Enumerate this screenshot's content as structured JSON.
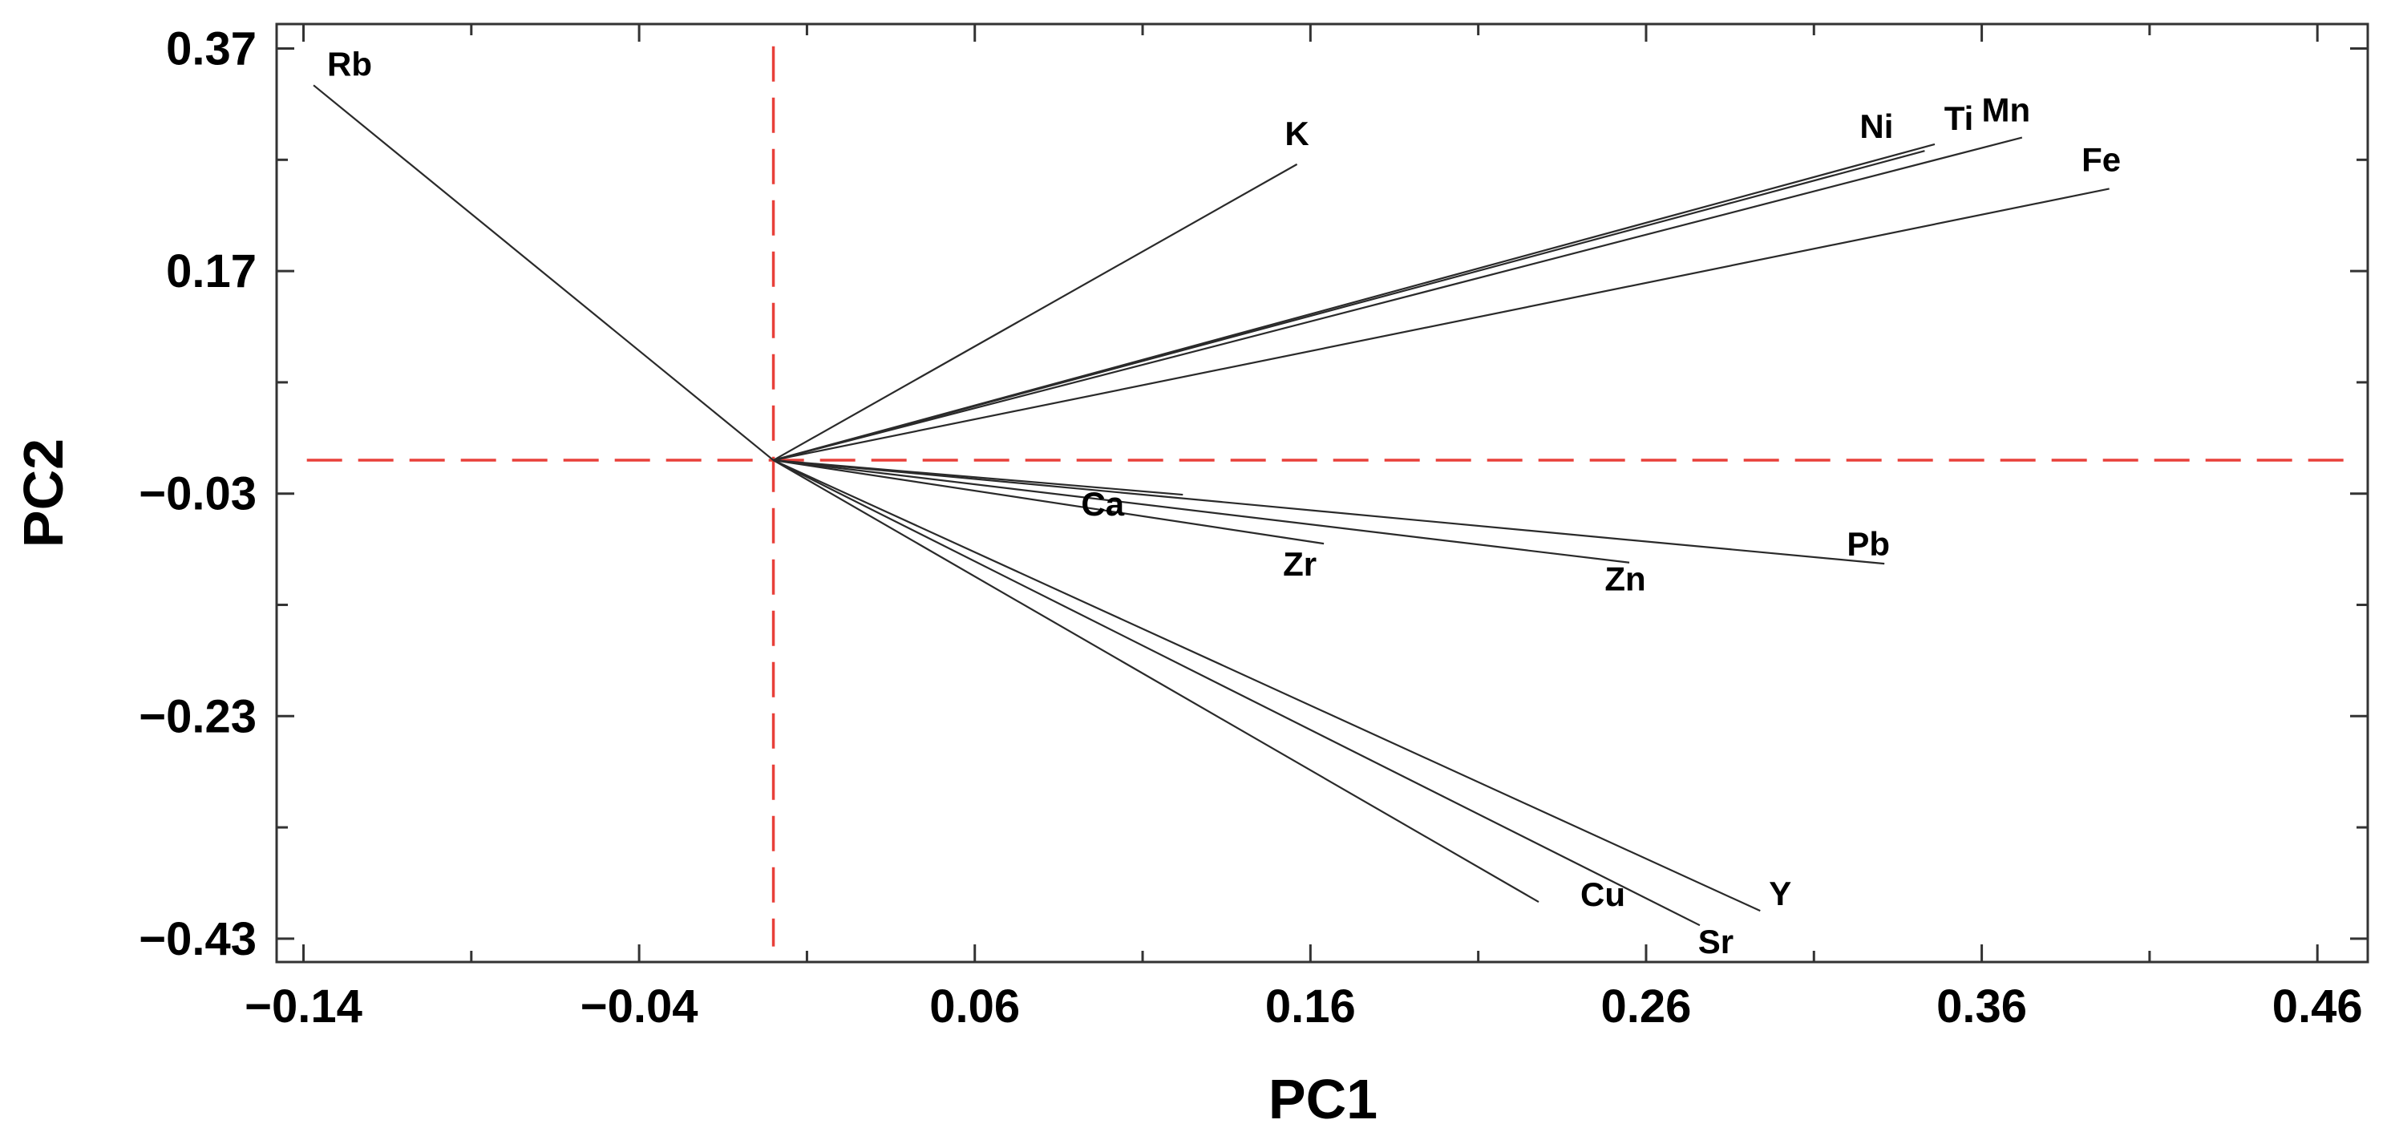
{
  "chart_data": {
    "type": "biplot",
    "xlabel": "PC1",
    "ylabel": "PC2",
    "xlim": [
      -0.148,
      0.475
    ],
    "ylim": [
      -0.451,
      0.392
    ],
    "x_ticks": [
      -0.14,
      -0.04,
      0.06,
      0.16,
      0.26,
      0.36,
      0.46
    ],
    "y_ticks": [
      0.37,
      0.17,
      -0.03,
      -0.23,
      -0.43
    ],
    "x_tick_labels": [
      "−0.14",
      "−0.04",
      "0.06",
      "0.16",
      "0.26",
      "0.36",
      "0.46"
    ],
    "y_tick_labels": [
      "0.37",
      "0.17",
      "−0.03",
      "−0.23",
      "−0.43"
    ],
    "origin": [
      0,
      0
    ],
    "reference_lines": {
      "color": "#e8403a",
      "style": "dashed"
    },
    "vectors": [
      {
        "label": "Rb",
        "x": -0.137,
        "y": 0.337
      },
      {
        "label": "K",
        "x": 0.156,
        "y": 0.266
      },
      {
        "label": "Ni",
        "x": 0.343,
        "y": 0.278
      },
      {
        "label": "Ti",
        "x": 0.346,
        "y": 0.284
      },
      {
        "label": "Mn",
        "x": 0.372,
        "y": 0.29
      },
      {
        "label": "Fe",
        "x": 0.398,
        "y": 0.244
      },
      {
        "label": "Ca",
        "x": 0.122,
        "y": -0.031
      },
      {
        "label": "Zr",
        "x": 0.164,
        "y": -0.075
      },
      {
        "label": "Zn",
        "x": 0.255,
        "y": -0.092
      },
      {
        "label": "Pb",
        "x": 0.331,
        "y": -0.093
      },
      {
        "label": "Cu",
        "x": 0.228,
        "y": -0.397
      },
      {
        "label": "Sr",
        "x": 0.276,
        "y": -0.418
      },
      {
        "label": "Y",
        "x": 0.294,
        "y": -0.405
      }
    ]
  }
}
